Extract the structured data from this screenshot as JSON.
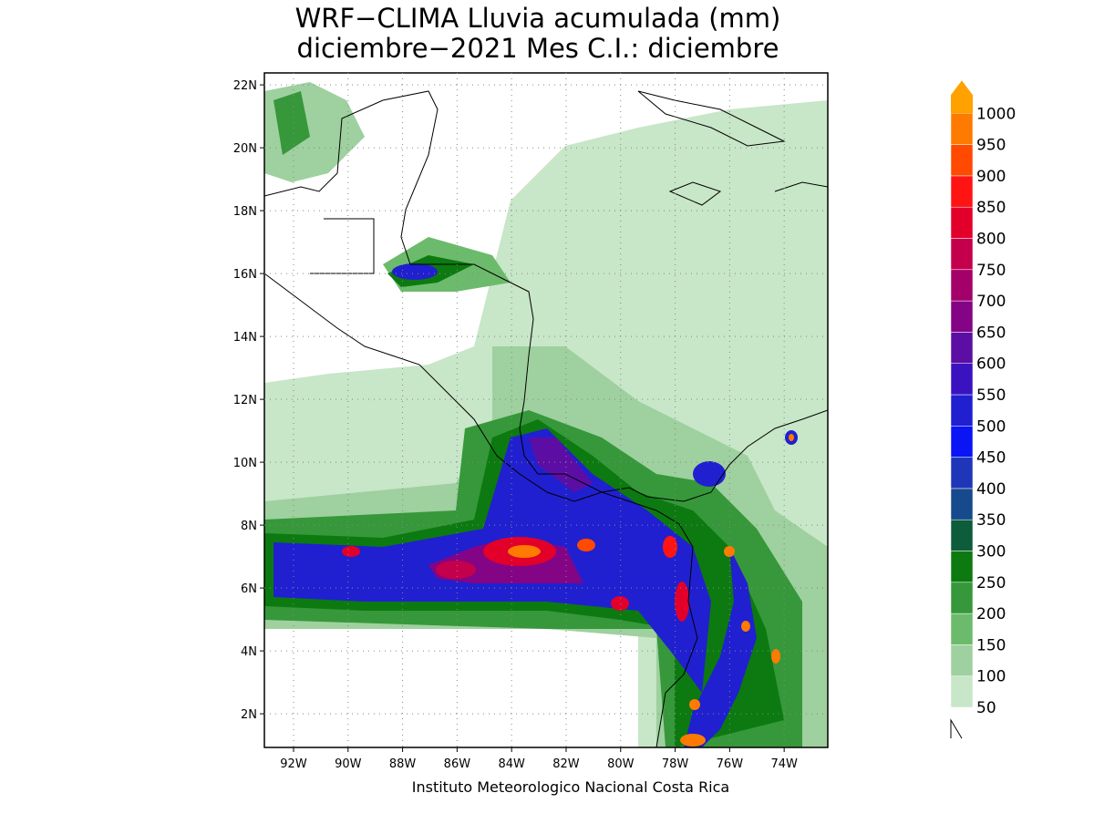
{
  "map": {
    "title": "WRF−CLIMA Lluvia acumulada (mm)",
    "subtitle": "diciembre−2021 Mes C.I.: diciembre",
    "footer": "Instituto Meteorologico Nacional Costa Rica",
    "lonlim": [
      -93.07,
      -72.4
    ],
    "latlim": [
      0.93,
      22.38
    ],
    "lonticks": [
      {
        "value": -92,
        "label": "92W"
      },
      {
        "value": -90,
        "label": "90W"
      },
      {
        "value": -88,
        "label": "88W"
      },
      {
        "value": -86,
        "label": "86W"
      },
      {
        "value": -84,
        "label": "84W"
      },
      {
        "value": -82,
        "label": "82W"
      },
      {
        "value": -80,
        "label": "80W"
      },
      {
        "value": -78,
        "label": "78W"
      },
      {
        "value": -76,
        "label": "76W"
      },
      {
        "value": -74,
        "label": "74W"
      }
    ],
    "latticks": [
      {
        "value": 2,
        "label": "2N"
      },
      {
        "value": 4,
        "label": "4N"
      },
      {
        "value": 6,
        "label": "6N"
      },
      {
        "value": 8,
        "label": "8N"
      },
      {
        "value": 10,
        "label": "10N"
      },
      {
        "value": 12,
        "label": "12N"
      },
      {
        "value": 14,
        "label": "14N"
      },
      {
        "value": 16,
        "label": "16N"
      },
      {
        "value": 18,
        "label": "18N"
      },
      {
        "value": 20,
        "label": "20N"
      },
      {
        "value": 22,
        "label": "22N"
      }
    ],
    "grid": true,
    "levels": [
      50,
      100,
      150,
      200,
      250,
      300,
      350,
      400,
      450,
      500,
      550,
      600,
      650,
      700,
      750,
      800,
      850,
      900,
      950,
      1000
    ],
    "colors": [
      "#c8e6c8",
      "#9fd09f",
      "#6cbb6c",
      "#36983a",
      "#0c7a10",
      "#0d5c3c",
      "#174a8c",
      "#1f36b8",
      "#0a14f5",
      "#2020d0",
      "#3a12c0",
      "#5c0ea4",
      "#840486",
      "#a4006a",
      "#c4004c",
      "#e2002a",
      "#ff1414",
      "#ff4a00",
      "#ff7a00",
      "#ffa200"
    ]
  }
}
